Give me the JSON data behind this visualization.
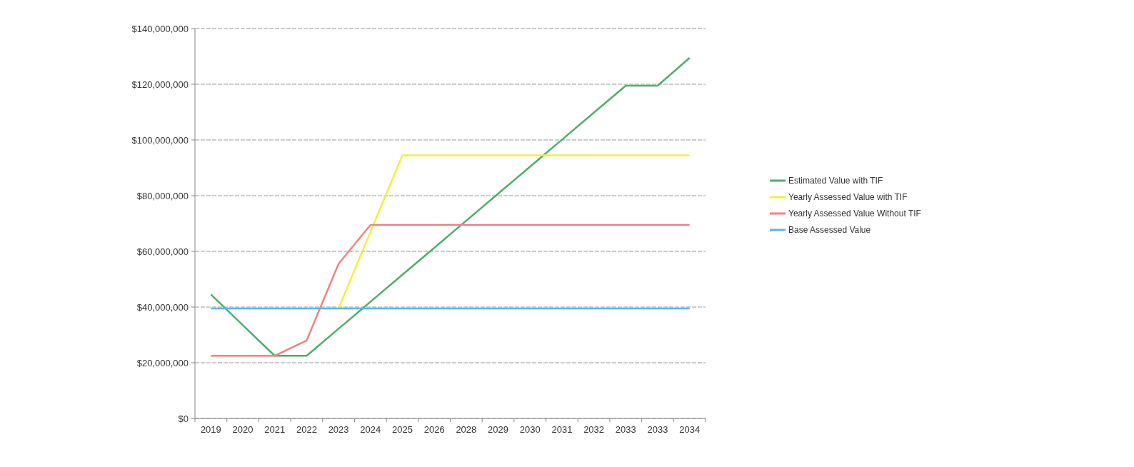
{
  "chart_data": {
    "type": "line",
    "categories": [
      "2019",
      "2020",
      "2021",
      "2022",
      "2023",
      "2024",
      "2025",
      "2026",
      "2028",
      "2029",
      "2030",
      "2031",
      "2032",
      "2033",
      "2033",
      "2034"
    ],
    "series": [
      {
        "name": "Estimated Value with TIF",
        "color": "#4caf6a",
        "values": [
          44500000,
          33500000,
          22500000,
          22500000,
          32200000,
          41900000,
          51600000,
          61300000,
          71000000,
          80700000,
          90400000,
          100100000,
          109800000,
          119500000,
          119500000,
          129500000
        ]
      },
      {
        "name": "Yearly Assessed Value with TIF",
        "color": "#f2f03c",
        "values": [
          null,
          null,
          null,
          null,
          39500000,
          67000000,
          94500000,
          94500000,
          94500000,
          94500000,
          94500000,
          94500000,
          94500000,
          94500000,
          94500000,
          94500000
        ]
      },
      {
        "name": "Yearly Assessed Value Without  TIF",
        "color": "#f08282",
        "values": [
          22500000,
          22500000,
          22500000,
          28000000,
          55500000,
          69500000,
          69500000,
          69500000,
          69500000,
          69500000,
          69500000,
          69500000,
          69500000,
          69500000,
          69500000,
          69500000
        ]
      },
      {
        "name": "Base Assessed Value",
        "color": "#5cb3e6",
        "values": [
          39500000,
          39500000,
          39500000,
          39500000,
          39500000,
          39500000,
          39500000,
          39500000,
          39500000,
          39500000,
          39500000,
          39500000,
          39500000,
          39500000,
          39500000,
          39500000
        ]
      }
    ],
    "ylim": [
      0,
      140000000
    ],
    "yticks": [
      {
        "value": 0,
        "label": "$0"
      },
      {
        "value": 20000000,
        "label": "$20,000,000"
      },
      {
        "value": 40000000,
        "label": "$40,000,000"
      },
      {
        "value": 60000000,
        "label": "$60,000,000"
      },
      {
        "value": 80000000,
        "label": "$80,000,000"
      },
      {
        "value": 100000000,
        "label": "$100,000,000"
      },
      {
        "value": 120000000,
        "label": "$120,000,000"
      },
      {
        "value": 140000000,
        "label": "$140,000,000"
      }
    ],
    "grid": "y",
    "legend": "right",
    "marker": "none",
    "line_style": "solid"
  }
}
